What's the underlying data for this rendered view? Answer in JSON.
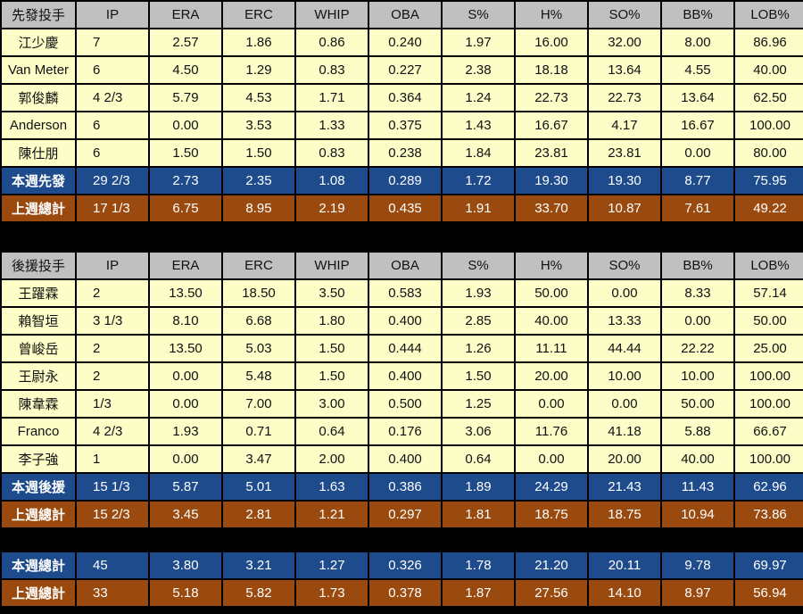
{
  "columns": [
    "IP",
    "ERA",
    "ERC",
    "WHIP",
    "OBA",
    "S%",
    "H%",
    "SO%",
    "BB%",
    "LOB%"
  ],
  "starters": {
    "header": "先發投手",
    "rows": [
      {
        "name": "江少慶",
        "stats": [
          "7",
          "2.57",
          "1.86",
          "0.86",
          "0.240",
          "1.97",
          "16.00",
          "32.00",
          "8.00",
          "86.96"
        ]
      },
      {
        "name": "Van Meter",
        "stats": [
          "6",
          "4.50",
          "1.29",
          "0.83",
          "0.227",
          "2.38",
          "18.18",
          "13.64",
          "4.55",
          "40.00"
        ]
      },
      {
        "name": "郭俊麟",
        "stats": [
          "4 2/3",
          "5.79",
          "4.53",
          "1.71",
          "0.364",
          "1.24",
          "22.73",
          "22.73",
          "13.64",
          "62.50"
        ]
      },
      {
        "name": "Anderson",
        "stats": [
          "6",
          "0.00",
          "3.53",
          "1.33",
          "0.375",
          "1.43",
          "16.67",
          "4.17",
          "16.67",
          "100.00"
        ]
      },
      {
        "name": "陳仕朋",
        "stats": [
          "6",
          "1.50",
          "1.50",
          "0.83",
          "0.238",
          "1.84",
          "23.81",
          "23.81",
          "0.00",
          "80.00"
        ]
      }
    ],
    "this_week": {
      "name": "本週先發",
      "stats": [
        "29 2/3",
        "2.73",
        "2.35",
        "1.08",
        "0.289",
        "1.72",
        "19.30",
        "19.30",
        "8.77",
        "75.95"
      ]
    },
    "last_week": {
      "name": "上週總計",
      "stats": [
        "17 1/3",
        "6.75",
        "8.95",
        "2.19",
        "0.435",
        "1.91",
        "33.70",
        "10.87",
        "7.61",
        "49.22"
      ]
    }
  },
  "relievers": {
    "header": "後援投手",
    "rows": [
      {
        "name": "王躍霖",
        "stats": [
          "2",
          "13.50",
          "18.50",
          "3.50",
          "0.583",
          "1.93",
          "50.00",
          "0.00",
          "8.33",
          "57.14"
        ]
      },
      {
        "name": "賴智垣",
        "stats": [
          "3 1/3",
          "8.10",
          "6.68",
          "1.80",
          "0.400",
          "2.85",
          "40.00",
          "13.33",
          "0.00",
          "50.00"
        ]
      },
      {
        "name": "曾峻岳",
        "stats": [
          "2",
          "13.50",
          "5.03",
          "1.50",
          "0.444",
          "1.26",
          "11.11",
          "44.44",
          "22.22",
          "25.00"
        ]
      },
      {
        "name": "王尉永",
        "stats": [
          "2",
          "0.00",
          "5.48",
          "1.50",
          "0.400",
          "1.50",
          "20.00",
          "10.00",
          "10.00",
          "100.00"
        ]
      },
      {
        "name": "陳韋霖",
        "stats": [
          "1/3",
          "0.00",
          "7.00",
          "3.00",
          "0.500",
          "1.25",
          "0.00",
          "0.00",
          "50.00",
          "100.00"
        ]
      },
      {
        "name": "Franco",
        "stats": [
          "4 2/3",
          "1.93",
          "0.71",
          "0.64",
          "0.176",
          "3.06",
          "11.76",
          "41.18",
          "5.88",
          "66.67"
        ]
      },
      {
        "name": "李子強",
        "stats": [
          "1",
          "0.00",
          "3.47",
          "2.00",
          "0.400",
          "0.64",
          "0.00",
          "20.00",
          "40.00",
          "100.00"
        ]
      }
    ],
    "this_week": {
      "name": "本週後援",
      "stats": [
        "15 1/3",
        "5.87",
        "5.01",
        "1.63",
        "0.386",
        "1.89",
        "24.29",
        "21.43",
        "11.43",
        "62.96"
      ]
    },
    "last_week": {
      "name": "上週總計",
      "stats": [
        "15 2/3",
        "3.45",
        "2.81",
        "1.21",
        "0.297",
        "1.81",
        "18.75",
        "18.75",
        "10.94",
        "73.86"
      ]
    }
  },
  "totals": {
    "this_week": {
      "name": "本週總計",
      "stats": [
        "45",
        "3.80",
        "3.21",
        "1.27",
        "0.326",
        "1.78",
        "21.20",
        "20.11",
        "9.78",
        "69.97"
      ]
    },
    "last_week": {
      "name": "上週總計",
      "stats": [
        "33",
        "5.18",
        "5.82",
        "1.73",
        "0.378",
        "1.87",
        "27.56",
        "14.10",
        "8.97",
        "56.94"
      ]
    }
  },
  "colors": {
    "header": "#c0c0c0",
    "row": "#fdfdc8",
    "this_week": "#1e4b8c",
    "last_week": "#9a4a0f"
  }
}
